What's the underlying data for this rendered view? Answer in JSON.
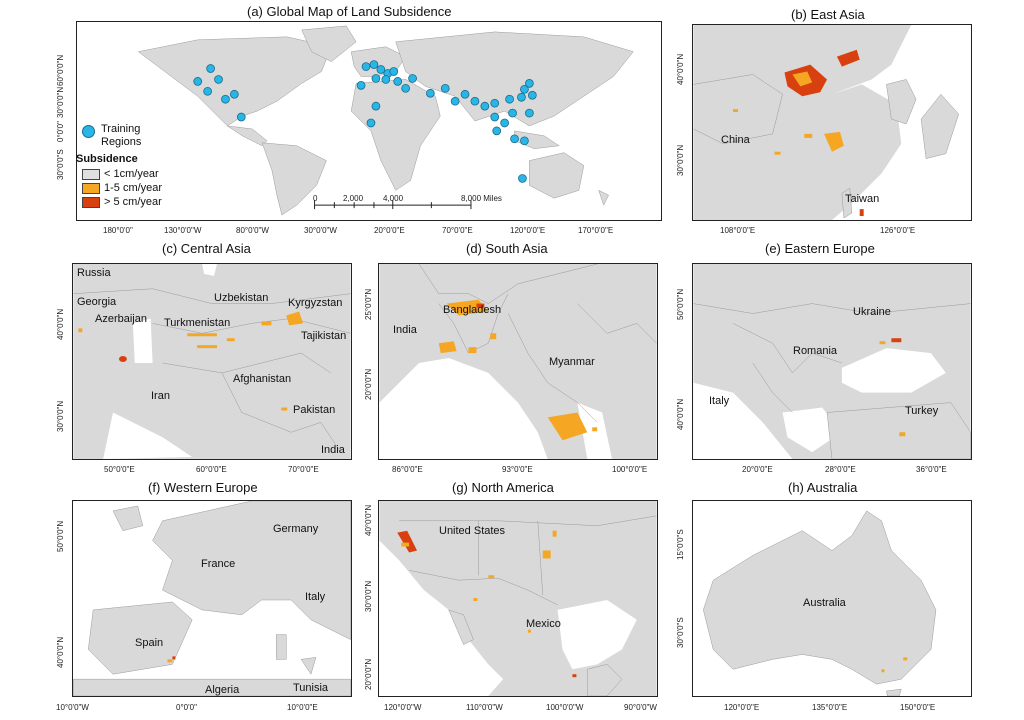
{
  "panels": {
    "a": {
      "title": "(a) Global Map of Land Subsidence",
      "xticks": [
        "180°0'0\"",
        "130°0'0\"W",
        "80°0'0\"W",
        "30°0'0\"W",
        "20°0'0\"E",
        "70°0'0\"E",
        "120°0'0\"E",
        "170°0'0\"E"
      ],
      "yticks": [
        "60°0'0\"N",
        "30°0'0\"N",
        "0°0'0\"",
        "30°0'0\"S"
      ],
      "scale": [
        "0",
        "2,000",
        "4,000",
        "8,000 Miles"
      ]
    },
    "b": {
      "title": "(b) East Asia",
      "labels": [
        "China",
        "Taiwan"
      ],
      "xticks": [
        "108°0'0\"E",
        "126°0'0\"E"
      ],
      "yticks": [
        "40°0'0\"N",
        "30°0'0\"N"
      ]
    },
    "c": {
      "title": "(c) Central Asia",
      "labels": [
        "Russia",
        "Georgia",
        "Azerbaijan",
        "Uzbekistan",
        "Kyrgyzstan",
        "Turkmenistan",
        "Tajikistan",
        "Afghanistan",
        "Iran",
        "Pakistan",
        "India"
      ],
      "xticks": [
        "50°0'0\"E",
        "60°0'0\"E",
        "70°0'0\"E"
      ],
      "yticks": [
        "40°0'0\"N",
        "30°0'0\"N"
      ]
    },
    "d": {
      "title": "(d) South Asia",
      "labels": [
        "Bangladesh",
        "India",
        "Myanmar"
      ],
      "xticks": [
        "86°0'0\"E",
        "93°0'0\"E",
        "100°0'0\"E"
      ],
      "yticks": [
        "25°0'0\"N",
        "20°0'0\"N"
      ]
    },
    "e": {
      "title": "(e) Eastern Europe",
      "labels": [
        "Ukraine",
        "Romania",
        "Italy",
        "Turkey"
      ],
      "xticks": [
        "20°0'0\"E",
        "28°0'0\"E",
        "36°0'0\"E"
      ],
      "yticks": [
        "50°0'0\"N",
        "40°0'0\"N"
      ]
    },
    "f": {
      "title": "(f) Western Europe",
      "labels": [
        "Germany",
        "France",
        "Italy",
        "Spain",
        "Algeria",
        "Tunisia"
      ],
      "xticks": [
        "10°0'0\"W",
        "0°0'0\"",
        "10°0'0\"E"
      ],
      "yticks": [
        "50°0'0\"N",
        "40°0'0\"N"
      ]
    },
    "g": {
      "title": "(g) North America",
      "labels": [
        "United States",
        "Mexico"
      ],
      "xticks": [
        "120°0'0\"W",
        "110°0'0\"W",
        "100°0'0\"W",
        "90°0'0\"W"
      ],
      "yticks": [
        "40°0'0\"N",
        "30°0'0\"N",
        "20°0'0\"N"
      ]
    },
    "h": {
      "title": "(h) Australia",
      "labels": [
        "Australia"
      ],
      "xticks": [
        "120°0'0\"E",
        "135°0'0\"E",
        "150°0'0\"E"
      ],
      "yticks": [
        "15°0'0\"S",
        "30°0'0\"S"
      ]
    }
  },
  "legend": {
    "training": "Training\nRegions",
    "heading": "Subsidence",
    "items": [
      {
        "label": "< 1cm/year",
        "color": "#e0e0e0"
      },
      {
        "label": "1-5 cm/year",
        "color": "#f5a623"
      },
      {
        "label": "> 5 cm/year",
        "color": "#d9400f"
      }
    ]
  },
  "colors": {
    "land": "#d9d9d9",
    "water": "#ffffff",
    "dot": "#29b6e6",
    "mid": "#f5a623",
    "high": "#d9400f"
  }
}
